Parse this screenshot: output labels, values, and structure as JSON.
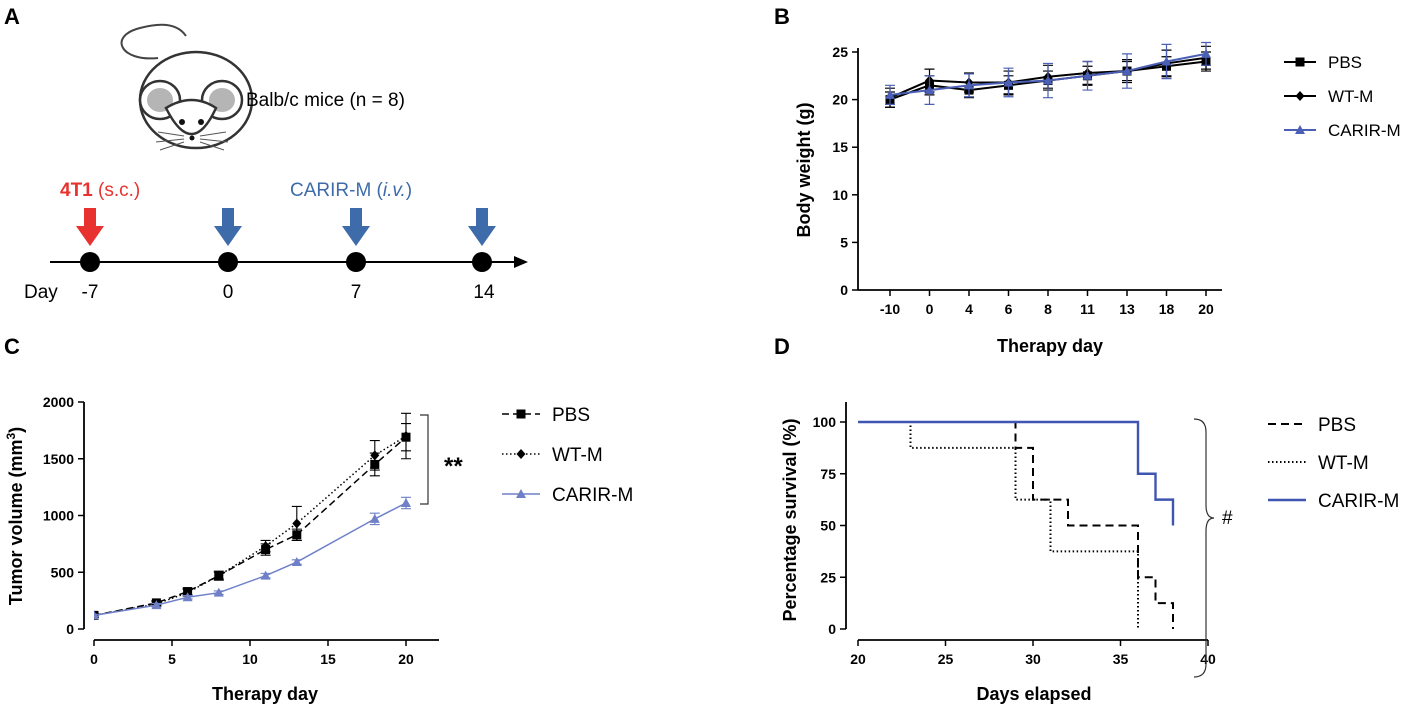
{
  "panels": {
    "a": {
      "label": "A",
      "mouse_caption": "Balb/c mice (n = 8)",
      "injection_4t1": {
        "prefix": "4T1 ",
        "suffix": "(s.c.)",
        "color": "#e8322f"
      },
      "injection_carir": {
        "prefix": "CARIR-M (",
        "route": "i.v.",
        "suffix": ")",
        "color": "#3e6ba9"
      },
      "day_label": "Day",
      "days": [
        "-7",
        "0",
        "7",
        "14"
      ]
    },
    "b": {
      "label": "B"
    },
    "c": {
      "label": "C",
      "significance": "**"
    },
    "d": {
      "label": "D",
      "significance": "#"
    }
  },
  "chart_data": [
    {
      "id": "B",
      "type": "line",
      "ylabel": "Body weight (g)",
      "xlabel": "Therapy day",
      "categories": [
        "-10",
        "0",
        "4",
        "6",
        "8",
        "11",
        "13",
        "18",
        "20"
      ],
      "ylim": [
        0,
        25
      ],
      "yticks": [
        0,
        5,
        10,
        15,
        20,
        25
      ],
      "series": [
        {
          "name": "PBS",
          "marker": "square",
          "color": "#000000",
          "values": [
            20.0,
            21.5,
            21.0,
            21.5,
            22.0,
            22.5,
            23.0,
            23.5,
            24.0
          ],
          "errors": [
            0.8,
            1.0,
            0.8,
            1.0,
            1.0,
            1.0,
            1.0,
            1.0,
            1.0
          ]
        },
        {
          "name": "WT-M",
          "marker": "diamond",
          "color": "#000000",
          "values": [
            20.2,
            22.0,
            21.8,
            21.8,
            22.4,
            22.8,
            23.0,
            23.8,
            24.4
          ],
          "errors": [
            1.0,
            1.2,
            1.0,
            1.2,
            1.2,
            1.2,
            1.2,
            1.4,
            1.2
          ]
        },
        {
          "name": "CARIR-M",
          "marker": "triangle",
          "color": "#4a5fb5",
          "values": [
            20.5,
            21.0,
            21.5,
            21.8,
            22.0,
            22.5,
            23.0,
            24.0,
            24.8
          ],
          "errors": [
            1.0,
            1.5,
            1.2,
            1.5,
            1.8,
            1.5,
            1.8,
            1.8,
            1.2
          ]
        }
      ]
    },
    {
      "id": "C",
      "type": "line",
      "ylabel": "Tumor volume (mm",
      "ylabel_sup": "3",
      "ylabel_end": ")",
      "xlabel": "Therapy day",
      "xlim": [
        0,
        22
      ],
      "ylim": [
        0,
        2000
      ],
      "xticks": [
        0,
        5,
        10,
        15,
        20
      ],
      "yticks": [
        0,
        500,
        1000,
        1500,
        2000
      ],
      "x": [
        0,
        4,
        6,
        8,
        11,
        13,
        18,
        20
      ],
      "series": [
        {
          "name": "PBS",
          "marker": "square",
          "color": "#000000",
          "dash": "dashed",
          "values": [
            120,
            230,
            330,
            470,
            700,
            830,
            1450,
            1690
          ],
          "errors": [
            15,
            20,
            30,
            40,
            50,
            50,
            100,
            120
          ]
        },
        {
          "name": "WT-M",
          "marker": "diamond",
          "color": "#000000",
          "dash": "dotted",
          "values": [
            120,
            220,
            320,
            470,
            730,
            930,
            1530,
            1700
          ],
          "errors": [
            15,
            20,
            30,
            30,
            50,
            150,
            130,
            200
          ]
        },
        {
          "name": "CARIR-M",
          "marker": "triangle",
          "color": "#6f80c8",
          "dash": "solid",
          "values": [
            120,
            210,
            280,
            320,
            470,
            590,
            970,
            1110
          ],
          "errors": [
            10,
            15,
            15,
            15,
            20,
            20,
            50,
            50
          ]
        }
      ]
    },
    {
      "id": "D",
      "type": "line",
      "step": true,
      "ylabel": "Percentage survival (%)",
      "xlabel": "Days elapsed",
      "xlim": [
        20,
        40
      ],
      "ylim": [
        0,
        100
      ],
      "xticks": [
        20,
        25,
        30,
        35,
        40
      ],
      "yticks": [
        0,
        25,
        50,
        75,
        100
      ],
      "series": [
        {
          "name": "PBS",
          "color": "#000000",
          "dash": "dashed",
          "x": [
            20,
            29,
            29,
            30,
            30,
            31,
            31,
            32,
            32,
            36,
            36,
            37,
            37,
            38,
            38
          ],
          "values": [
            100,
            100,
            87.5,
            87.5,
            62.5,
            62.5,
            62.5,
            62.5,
            50,
            50,
            25,
            25,
            12.5,
            12.5,
            0
          ]
        },
        {
          "name": "WT-M",
          "color": "#000000",
          "dash": "dotted",
          "x": [
            20,
            23,
            23,
            29,
            29,
            31,
            31,
            36,
            36
          ],
          "values": [
            100,
            100,
            87.5,
            87.5,
            62.5,
            62.5,
            37.5,
            37.5,
            0
          ]
        },
        {
          "name": "CARIR-M",
          "color": "#3f55b0",
          "dash": "solid",
          "x": [
            20,
            36,
            36,
            37,
            37,
            38,
            38
          ],
          "values": [
            100,
            100,
            75,
            75,
            62.5,
            62.5,
            50
          ]
        }
      ]
    }
  ]
}
